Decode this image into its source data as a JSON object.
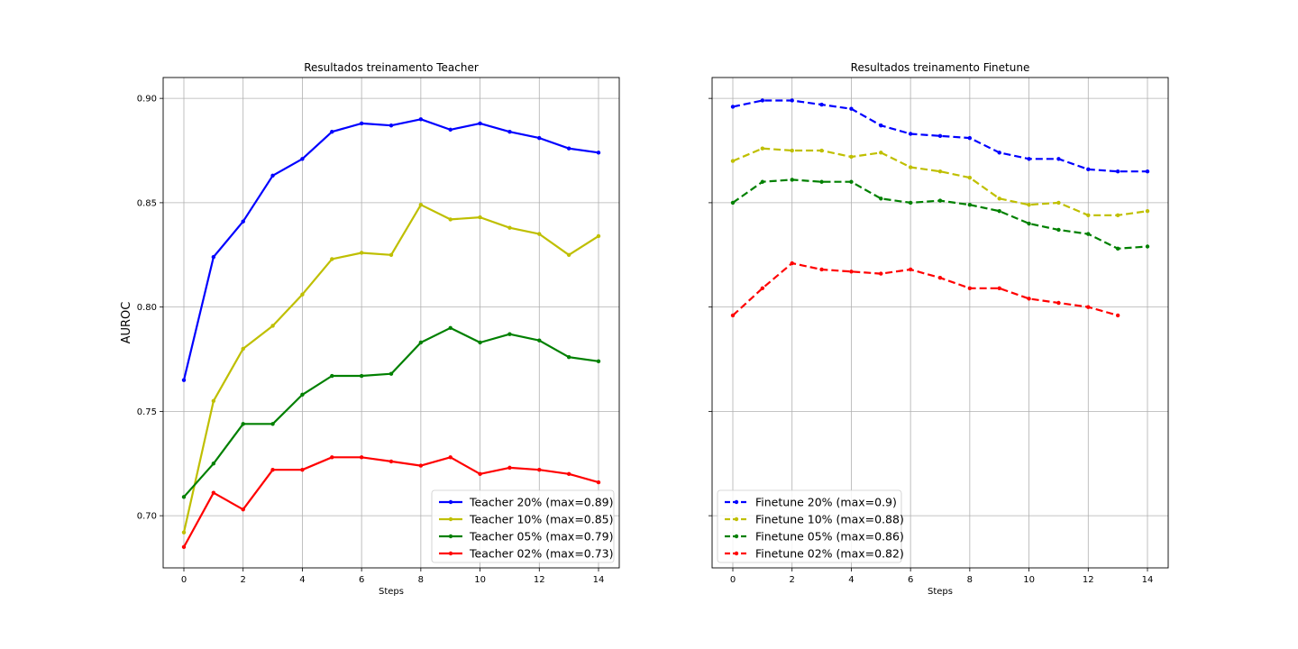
{
  "chart_data": [
    {
      "type": "line",
      "title": "Resultados treinamento Teacher",
      "xlabel": "Steps",
      "ylabel": "AUROC",
      "xlim": [
        -0.7,
        14.7
      ],
      "ylim": [
        0.675,
        0.91
      ],
      "xticks": [
        0,
        2,
        4,
        6,
        8,
        10,
        12,
        14
      ],
      "yticks": [
        0.7,
        0.75,
        0.8,
        0.85,
        0.9
      ],
      "ytick_labels": [
        "0.70",
        "0.75",
        "0.80",
        "0.85",
        "0.90"
      ],
      "grid": true,
      "legend_position": "lower-right",
      "line_style": "solid",
      "series": [
        {
          "name": "Teacher 20%  (max=0.89)",
          "color": "#0000ff",
          "x": [
            0,
            1,
            2,
            3,
            4,
            5,
            6,
            7,
            8,
            9,
            10,
            11,
            12,
            13,
            14
          ],
          "values": [
            0.765,
            0.824,
            0.841,
            0.863,
            0.871,
            0.884,
            0.888,
            0.887,
            0.89,
            0.885,
            0.888,
            0.884,
            0.881,
            0.876,
            0.874
          ]
        },
        {
          "name": "Teacher 10%  (max=0.85)",
          "color": "#bfbf00",
          "x": [
            0,
            1,
            2,
            3,
            4,
            5,
            6,
            7,
            8,
            9,
            10,
            11,
            12,
            13,
            14
          ],
          "values": [
            0.692,
            0.755,
            0.78,
            0.791,
            0.806,
            0.823,
            0.826,
            0.825,
            0.849,
            0.842,
            0.843,
            0.838,
            0.835,
            0.825,
            0.834
          ]
        },
        {
          "name": "Teacher 05%  (max=0.79)",
          "color": "#008000",
          "x": [
            0,
            1,
            2,
            3,
            4,
            5,
            6,
            7,
            8,
            9,
            10,
            11,
            12,
            13,
            14
          ],
          "values": [
            0.709,
            0.725,
            0.744,
            0.744,
            0.758,
            0.767,
            0.767,
            0.768,
            0.783,
            0.79,
            0.783,
            0.787,
            0.784,
            0.776,
            0.774
          ]
        },
        {
          "name": "Teacher 02%  (max=0.73)",
          "color": "#ff0000",
          "x": [
            0,
            1,
            2,
            3,
            4,
            5,
            6,
            7,
            8,
            9,
            10,
            11,
            12,
            13,
            14
          ],
          "values": [
            0.685,
            0.711,
            0.703,
            0.722,
            0.722,
            0.728,
            0.728,
            0.726,
            0.724,
            0.728,
            0.72,
            0.723,
            0.722,
            0.72,
            0.716
          ]
        }
      ]
    },
    {
      "type": "line",
      "title": "Resultados treinamento Finetune",
      "xlabel": "Steps",
      "ylabel": "",
      "xlim": [
        -0.7,
        14.7
      ],
      "ylim": [
        0.675,
        0.91
      ],
      "xticks": [
        0,
        2,
        4,
        6,
        8,
        10,
        12,
        14
      ],
      "yticks": [
        0.7,
        0.75,
        0.8,
        0.85,
        0.9
      ],
      "grid": true,
      "legend_position": "lower-left",
      "line_style": "dashed",
      "series": [
        {
          "name": "Finetune 20%  (max=0.9)",
          "color": "#0000ff",
          "x": [
            0,
            1,
            2,
            3,
            4,
            5,
            6,
            7,
            8,
            9,
            10,
            11,
            12,
            13,
            14
          ],
          "values": [
            0.896,
            0.899,
            0.899,
            0.897,
            0.895,
            0.887,
            0.883,
            0.882,
            0.881,
            0.874,
            0.871,
            0.871,
            0.866,
            0.865,
            0.865
          ]
        },
        {
          "name": "Finetune 10%  (max=0.88)",
          "color": "#bfbf00",
          "x": [
            0,
            1,
            2,
            3,
            4,
            5,
            6,
            7,
            8,
            9,
            10,
            11,
            12,
            13,
            14
          ],
          "values": [
            0.87,
            0.876,
            0.875,
            0.875,
            0.872,
            0.874,
            0.867,
            0.865,
            0.862,
            0.852,
            0.849,
            0.85,
            0.844,
            0.844,
            0.846
          ]
        },
        {
          "name": "Finetune 05%  (max=0.86)",
          "color": "#008000",
          "x": [
            0,
            1,
            2,
            3,
            4,
            5,
            6,
            7,
            8,
            9,
            10,
            11,
            12,
            13,
            14
          ],
          "values": [
            0.85,
            0.86,
            0.861,
            0.86,
            0.86,
            0.852,
            0.85,
            0.851,
            0.849,
            0.846,
            0.84,
            0.837,
            0.835,
            0.828,
            0.829
          ]
        },
        {
          "name": "Finetune 02%  (max=0.82)",
          "color": "#ff0000",
          "x": [
            0,
            1,
            2,
            3,
            4,
            5,
            6,
            7,
            8,
            9,
            10,
            11,
            12,
            13
          ],
          "values": [
            0.796,
            0.809,
            0.821,
            0.818,
            0.817,
            0.816,
            0.818,
            0.814,
            0.809,
            0.809,
            0.804,
            0.802,
            0.8,
            0.796
          ]
        }
      ]
    }
  ]
}
